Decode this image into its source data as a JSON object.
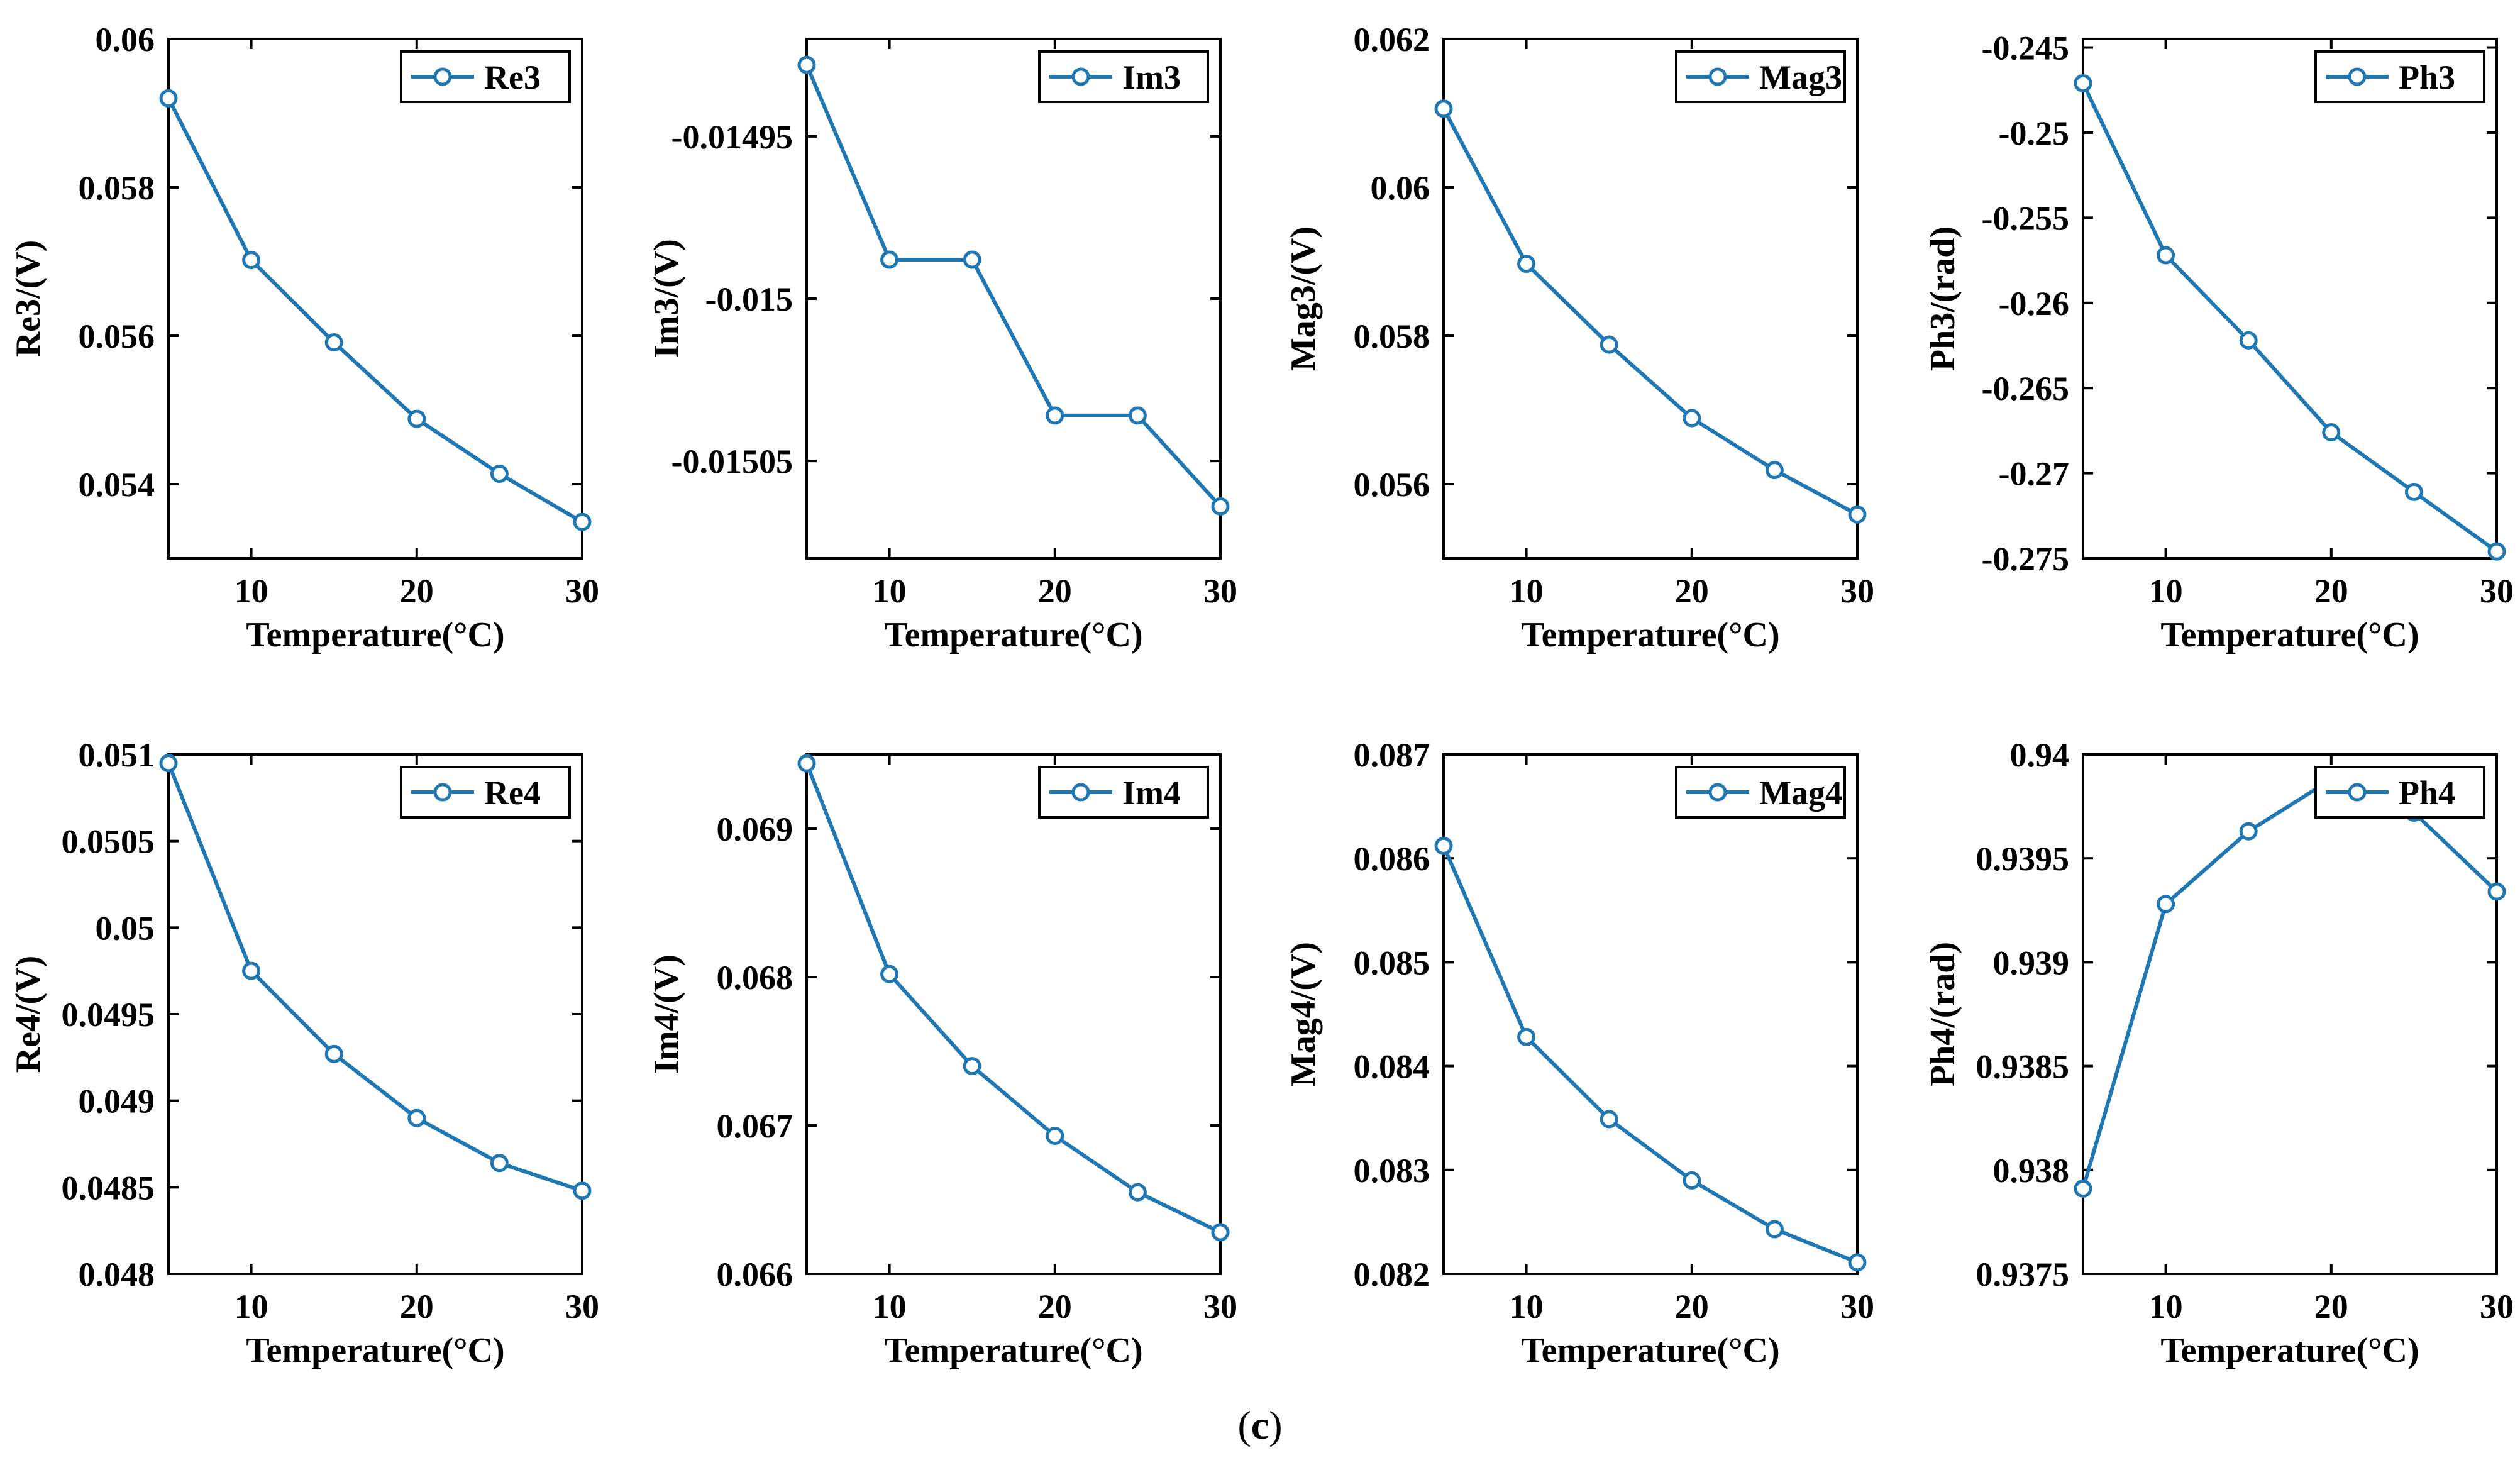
{
  "caption": {
    "open": "(",
    "label": "c",
    "close": ")"
  },
  "style": {
    "line_color": "#1f77b4",
    "axis_color": "#000000"
  },
  "chart_data": [
    {
      "type": "line",
      "title": "",
      "xlabel": "Temperature(°C)",
      "ylabel": "Re3/(V)",
      "legend": "Re3",
      "legend_position": "top-right",
      "x": [
        5,
        10,
        15,
        20,
        25,
        30
      ],
      "values": [
        0.0592,
        0.05702,
        0.05591,
        0.05488,
        0.05414,
        0.05349
      ],
      "xlim": [
        5,
        30
      ],
      "ylim": [
        0.053,
        0.06
      ],
      "xticks": [
        10,
        20,
        30
      ],
      "xtick_labels": [
        "10",
        "20",
        "30"
      ],
      "yticks": [
        0.054,
        0.056,
        0.058,
        0.06
      ],
      "ytick_labels": [
        "0.054",
        "0.056",
        "0.058",
        "0.06"
      ]
    },
    {
      "type": "line",
      "title": "",
      "xlabel": "Temperature(°C)",
      "ylabel": "Im3/(V)",
      "legend": "Im3",
      "legend_position": "top-right",
      "x": [
        5,
        10,
        15,
        20,
        25,
        30
      ],
      "values": [
        -0.014928,
        -0.014988,
        -0.014988,
        -0.015036,
        -0.015036,
        -0.015064
      ],
      "xlim": [
        5,
        30
      ],
      "ylim": [
        -0.01508,
        -0.01492
      ],
      "xticks": [
        10,
        20,
        30
      ],
      "xtick_labels": [
        "10",
        "20",
        "30"
      ],
      "yticks": [
        -0.01505,
        -0.015,
        -0.01495
      ],
      "ytick_labels": [
        "-0.01505",
        "-0.015",
        "-0.01495"
      ]
    },
    {
      "type": "line",
      "title": "",
      "xlabel": "Temperature(°C)",
      "ylabel": "Mag3/(V)",
      "legend": "Mag3",
      "legend_position": "top-right",
      "x": [
        5,
        10,
        15,
        20,
        25,
        30
      ],
      "values": [
        0.06106,
        0.05897,
        0.05788,
        0.05689,
        0.05619,
        0.05559
      ],
      "xlim": [
        5,
        30
      ],
      "ylim": [
        0.055,
        0.062
      ],
      "xticks": [
        10,
        20,
        30
      ],
      "xtick_labels": [
        "10",
        "20",
        "30"
      ],
      "yticks": [
        0.056,
        0.058,
        0.06,
        0.062
      ],
      "ytick_labels": [
        "0.056",
        "0.058",
        "0.06",
        "0.062"
      ]
    },
    {
      "type": "line",
      "title": "",
      "xlabel": "Temperature(°C)",
      "ylabel": "Ph3/(rad)",
      "legend": "Ph3",
      "legend_position": "top-right",
      "x": [
        5,
        10,
        15,
        20,
        25,
        30
      ],
      "values": [
        -0.2471,
        -0.2572,
        -0.2622,
        -0.2676,
        -0.2711,
        -0.2746
      ],
      "xlim": [
        5,
        30
      ],
      "ylim": [
        -0.275,
        -0.2445
      ],
      "xticks": [
        10,
        20,
        30
      ],
      "xtick_labels": [
        "10",
        "20",
        "30"
      ],
      "yticks": [
        -0.275,
        -0.27,
        -0.265,
        -0.26,
        -0.255,
        -0.25,
        -0.245
      ],
      "ytick_labels": [
        "-0.275",
        "-0.27",
        "-0.265",
        "-0.26",
        "-0.255",
        "-0.25",
        "-0.245"
      ]
    },
    {
      "type": "line",
      "title": "",
      "xlabel": "Temperature(°C)",
      "ylabel": "Re4/(V)",
      "legend": "Re4",
      "legend_position": "top-right",
      "x": [
        5,
        10,
        15,
        20,
        25,
        30
      ],
      "values": [
        0.05095,
        0.04975,
        0.04927,
        0.0489,
        0.04864,
        0.04848
      ],
      "xlim": [
        5,
        30
      ],
      "ylim": [
        0.048,
        0.051
      ],
      "xticks": [
        10,
        20,
        30
      ],
      "xtick_labels": [
        "10",
        "20",
        "30"
      ],
      "yticks": [
        0.048,
        0.0485,
        0.049,
        0.0495,
        0.05,
        0.0505,
        0.051
      ],
      "ytick_labels": [
        "0.048",
        "0.0485",
        "0.049",
        "0.0495",
        "0.05",
        "0.0505",
        "0.051"
      ]
    },
    {
      "type": "line",
      "title": "",
      "xlabel": "Temperature(°C)",
      "ylabel": "Im4/(V)",
      "legend": "Im4",
      "legend_position": "top-right",
      "x": [
        5,
        10,
        15,
        20,
        25,
        30
      ],
      "values": [
        0.06944,
        0.06802,
        0.0674,
        0.06693,
        0.06655,
        0.06628
      ],
      "xlim": [
        5,
        30
      ],
      "ylim": [
        0.066,
        0.0695
      ],
      "xticks": [
        10,
        20,
        30
      ],
      "xtick_labels": [
        "10",
        "20",
        "30"
      ],
      "yticks": [
        0.066,
        0.067,
        0.068,
        0.069
      ],
      "ytick_labels": [
        "0.066",
        "0.067",
        "0.068",
        "0.069"
      ]
    },
    {
      "type": "line",
      "title": "",
      "xlabel": "Temperature(°C)",
      "ylabel": "Mag4/(V)",
      "legend": "Mag4",
      "legend_position": "top-right",
      "x": [
        5,
        10,
        15,
        20,
        25,
        30
      ],
      "values": [
        0.08612,
        0.08428,
        0.08349,
        0.0829,
        0.08243,
        0.08211
      ],
      "xlim": [
        5,
        30
      ],
      "ylim": [
        0.082,
        0.087
      ],
      "xticks": [
        10,
        20,
        30
      ],
      "xtick_labels": [
        "10",
        "20",
        "30"
      ],
      "yticks": [
        0.082,
        0.083,
        0.084,
        0.085,
        0.086,
        0.087
      ],
      "ytick_labels": [
        "0.082",
        "0.083",
        "0.084",
        "0.085",
        "0.086",
        "0.087"
      ]
    },
    {
      "type": "line",
      "title": "",
      "xlabel": "Temperature(°C)",
      "ylabel": "Ph4/(rad)",
      "legend": "Ph4",
      "legend_position": "top-right",
      "x": [
        5,
        10,
        15,
        20,
        25,
        30
      ],
      "values": [
        0.93791,
        0.93928,
        0.93963,
        0.93988,
        0.93972,
        0.93934
      ],
      "xlim": [
        5,
        30
      ],
      "ylim": [
        0.9375,
        0.94
      ],
      "xticks": [
        10,
        20,
        30
      ],
      "xtick_labels": [
        "10",
        "20",
        "30"
      ],
      "yticks": [
        0.9375,
        0.938,
        0.9385,
        0.939,
        0.9395,
        0.94
      ],
      "ytick_labels": [
        "0.9375",
        "0.938",
        "0.9385",
        "0.939",
        "0.9395",
        "0.94"
      ]
    }
  ]
}
